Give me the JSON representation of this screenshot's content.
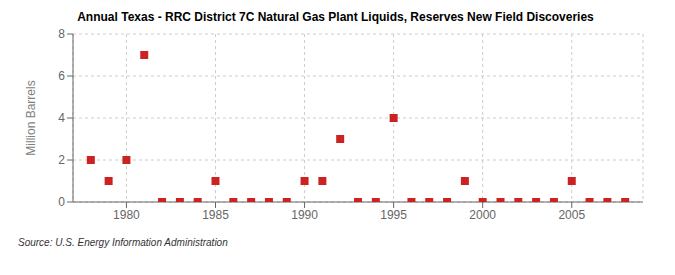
{
  "chart_data": {
    "type": "scatter",
    "title": "Annual Texas - RRC District 7C Natural Gas Plant Liquids, Reserves New Field Discoveries",
    "ylabel": "Million Barrels",
    "annotations": [
      "Source: U.S. Energy Information Administration"
    ],
    "x": [
      1978,
      1979,
      1980,
      1981,
      1982,
      1983,
      1984,
      1985,
      1986,
      1987,
      1988,
      1989,
      1990,
      1991,
      1992,
      1993,
      1994,
      1995,
      1996,
      1997,
      1998,
      1999,
      2000,
      2001,
      2002,
      2003,
      2004,
      2005,
      2006,
      2007,
      2008
    ],
    "values": [
      2.0,
      1.0,
      2.0,
      7.0,
      0.0,
      0.0,
      0.0,
      1.0,
      0.0,
      0.0,
      0.0,
      0.0,
      1.0,
      1.0,
      3.0,
      0.0,
      0.0,
      4.0,
      0.0,
      0.0,
      0.0,
      1.0,
      0.0,
      0.0,
      0.0,
      0.0,
      0.0,
      1.0,
      0.0,
      0.0,
      0.0
    ],
    "color": "#cc2222",
    "marker": "square",
    "xlim": [
      1977,
      2009
    ],
    "xticks": [
      1980,
      1985,
      1990,
      1995,
      2000,
      2005
    ],
    "ylim": [
      0,
      8
    ],
    "yticks": [
      0,
      2,
      4,
      6,
      8
    ],
    "grid": true
  }
}
